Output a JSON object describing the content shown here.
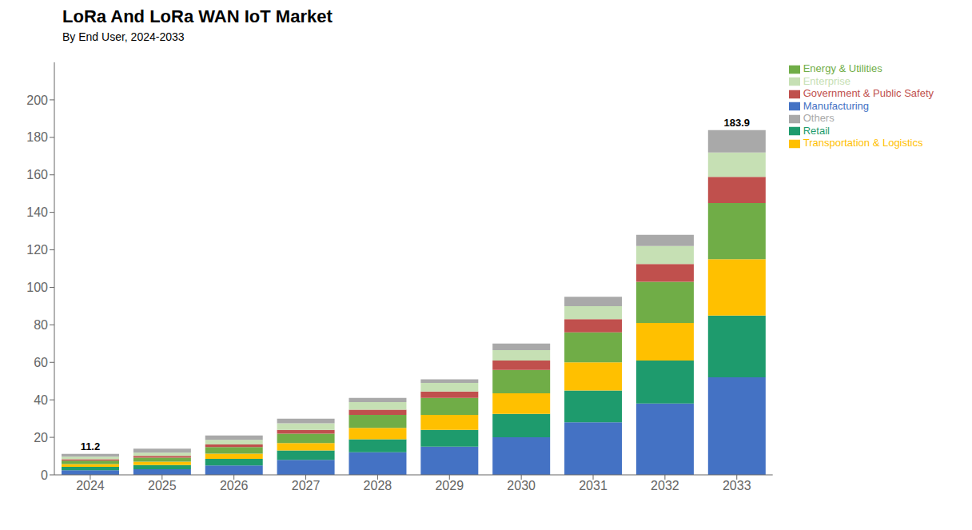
{
  "chart_data": {
    "type": "bar",
    "title": "LoRa And LoRa WAN IoT Market",
    "subtitle": "By End User, 2024-2033",
    "categories": [
      "2024",
      "2025",
      "2026",
      "2027",
      "2028",
      "2029",
      "2030",
      "2031",
      "2032",
      "2033"
    ],
    "series": [
      {
        "name": "Manufacturing",
        "color": "#4472C4",
        "values": [
          2.5,
          3.0,
          5.0,
          8.0,
          12.0,
          15.0,
          20.0,
          28.0,
          38.0,
          52.0
        ]
      },
      {
        "name": "Retail",
        "color": "#1E9B6D",
        "values": [
          1.8,
          2.2,
          3.5,
          5.0,
          7.0,
          9.0,
          12.5,
          17.0,
          23.0,
          33.0
        ]
      },
      {
        "name": "Transportation & Logistics",
        "color": "#FFC000",
        "values": [
          1.5,
          1.8,
          2.8,
          4.0,
          6.0,
          8.0,
          11.0,
          15.0,
          20.0,
          30.0
        ]
      },
      {
        "name": "Energy & Utilities",
        "color": "#70AD47",
        "values": [
          1.8,
          2.2,
          3.5,
          5.0,
          7.0,
          9.0,
          12.5,
          16.0,
          22.0,
          30.0
        ]
      },
      {
        "name": "Government & Public Safety",
        "color": "#C0504D",
        "values": [
          0.7,
          0.9,
          1.4,
          2.0,
          2.8,
          3.5,
          5.0,
          7.0,
          9.5,
          13.9
        ]
      },
      {
        "name": "Enterprise",
        "color": "#C6E0B4",
        "values": [
          1.4,
          1.7,
          2.5,
          3.5,
          4.0,
          4.5,
          5.5,
          7.0,
          9.5,
          13.0
        ]
      },
      {
        "name": "Others",
        "color": "#A9A9A9",
        "values": [
          1.5,
          2.2,
          2.3,
          2.5,
          2.2,
          2.0,
          3.5,
          5.0,
          6.0,
          12.0
        ]
      }
    ],
    "annotations": [
      {
        "x": "2024",
        "y": 11.2,
        "text": "11.2"
      },
      {
        "x": "2033",
        "y": 183.9,
        "text": "183.9"
      }
    ],
    "stacked": true,
    "ylim": [
      0,
      220
    ],
    "yticks": [
      0,
      20,
      40,
      60,
      80,
      100,
      120,
      140,
      160,
      180,
      200
    ],
    "grid": false,
    "legend": "upper right"
  }
}
